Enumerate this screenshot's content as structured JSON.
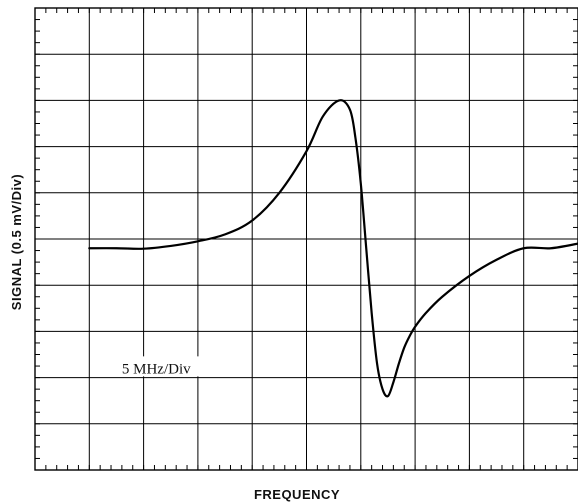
{
  "chart_data": {
    "type": "line",
    "title": "",
    "xlabel": "FREQUENCY",
    "ylabel": "SIGNAL  (0.5 mV/Div)",
    "xlim": [
      0,
      10
    ],
    "ylim": [
      0,
      10
    ],
    "grid": true,
    "annotations": [
      {
        "text": "5 MHz/Div",
        "x": 1.6,
        "y": 2.2
      }
    ],
    "series": [
      {
        "name": "",
        "x": [
          1.0,
          1.5,
          2.0,
          2.5,
          3.0,
          3.5,
          4.0,
          4.5,
          5.0,
          5.3,
          5.6,
          5.8,
          5.9,
          6.0,
          6.1,
          6.2,
          6.3,
          6.4,
          6.5,
          6.6,
          6.7,
          6.8,
          6.9,
          7.0,
          7.2,
          7.5,
          8.0,
          8.5,
          9.0,
          9.5,
          10.0
        ],
        "y": [
          4.8,
          4.8,
          4.79,
          4.85,
          4.95,
          5.1,
          5.4,
          6.0,
          6.9,
          7.65,
          8.0,
          7.8,
          7.2,
          6.2,
          4.8,
          3.4,
          2.3,
          1.75,
          1.6,
          1.9,
          2.3,
          2.65,
          2.9,
          3.1,
          3.4,
          3.75,
          4.2,
          4.55,
          4.8,
          4.8,
          4.9
        ]
      }
    ],
    "color": "#000000"
  }
}
